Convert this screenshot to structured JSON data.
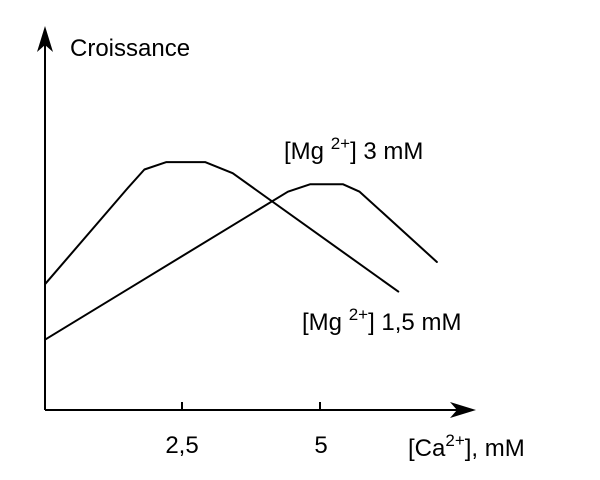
{
  "chart_data": {
    "type": "line",
    "ylabel": "Croissance",
    "xlabel": {
      "prefix": "[Ca",
      "superscript": "2+",
      "suffix": "], mM"
    },
    "x_ticks": [
      {
        "value": 2.5,
        "label": "2,5"
      },
      {
        "value": 5,
        "label": "5"
      }
    ],
    "xlim": [
      0,
      7.5
    ],
    "ylim": [
      0,
      1
    ],
    "grid": false,
    "legend": "none",
    "series": [
      {
        "label": {
          "prefix": "[Mg ",
          "superscript": "2+",
          "suffix": "] 1,5 mM"
        },
        "points": [
          {
            "x": 0.0,
            "y": 0.34
          },
          {
            "x": 1.5,
            "y": 0.6
          },
          {
            "x": 1.8,
            "y": 0.65
          },
          {
            "x": 2.2,
            "y": 0.67
          },
          {
            "x": 2.9,
            "y": 0.67
          },
          {
            "x": 3.4,
            "y": 0.64
          },
          {
            "x": 6.4,
            "y": 0.32
          }
        ]
      },
      {
        "label": {
          "prefix": "[Mg ",
          "superscript": "2+",
          "suffix": "] 3 mM"
        },
        "points": [
          {
            "x": 0.0,
            "y": 0.19
          },
          {
            "x": 4.4,
            "y": 0.59
          },
          {
            "x": 4.8,
            "y": 0.61
          },
          {
            "x": 5.4,
            "y": 0.61
          },
          {
            "x": 5.7,
            "y": 0.59
          },
          {
            "x": 7.1,
            "y": 0.4
          }
        ]
      }
    ]
  }
}
